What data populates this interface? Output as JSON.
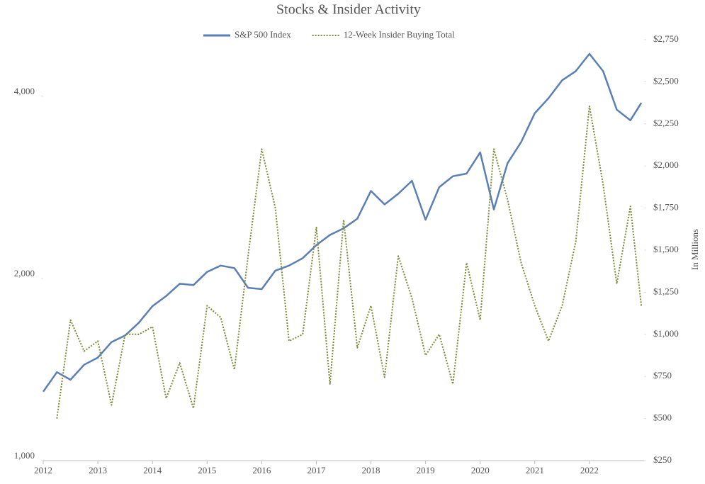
{
  "chart_data": {
    "type": "line",
    "title": "Stocks & Insider Activity",
    "y2_label": "In Millions",
    "legend": "top",
    "x": [
      2012,
      2012.25,
      2012.5,
      2012.75,
      2013,
      2013.25,
      2013.5,
      2013.75,
      2014,
      2014.25,
      2014.5,
      2014.75,
      2015,
      2015.25,
      2015.5,
      2015.75,
      2016,
      2016.25,
      2016.5,
      2016.75,
      2017,
      2017.25,
      2017.5,
      2017.75,
      2018,
      2018.25,
      2018.5,
      2018.75,
      2019,
      2019.25,
      2019.5,
      2019.75,
      2020,
      2020.25,
      2020.5,
      2020.75,
      2021,
      2021.25,
      2021.5,
      2021.75,
      2022,
      2022.25,
      2022.5,
      2022.75,
      2022.95
    ],
    "series": [
      {
        "name": "S&P 500 Index",
        "color": "#5b7fb5",
        "style": "solid",
        "values": [
          1300,
          1400,
          1360,
          1440,
          1480,
          1570,
          1610,
          1690,
          1800,
          1870,
          1960,
          1950,
          2050,
          2100,
          2080,
          1930,
          1920,
          2060,
          2100,
          2160,
          2270,
          2360,
          2420,
          2510,
          2790,
          2650,
          2760,
          2900,
          2500,
          2830,
          2950,
          2980,
          3230,
          2600,
          3100,
          3360,
          3750,
          3970,
          4250,
          4400,
          4700,
          4400,
          3800,
          3650,
          3900
        ]
      },
      {
        "name": "12-Week Insider Buying Total",
        "color": "#7a8c3c",
        "style": "dotted",
        "axis": "y2",
        "values": [
          null,
          500,
          1085,
          900,
          960,
          580,
          1000,
          1000,
          1045,
          620,
          830,
          560,
          1170,
          1100,
          790,
          1465,
          2100,
          1750,
          960,
          1000,
          1635,
          705,
          1680,
          920,
          1170,
          745,
          1465,
          1215,
          875,
          1000,
          705,
          1425,
          1085,
          2100,
          1800,
          1425,
          1170,
          960,
          1170,
          1550,
          2355,
          1890,
          1300,
          1760,
          1170
        ]
      }
    ],
    "xlim": [
      2012,
      2023
    ],
    "xticks": [
      2012,
      2013,
      2014,
      2015,
      2016,
      2017,
      2018,
      2019,
      2020,
      2021,
      2022
    ],
    "ylim": [
      1000,
      4960
    ],
    "log_y": true,
    "yticks": [
      {
        "value": 1000,
        "label": "1,000"
      },
      {
        "value": 2000,
        "label": "2,000"
      },
      {
        "value": 4000,
        "label": "4,000"
      }
    ],
    "y2lim": [
      250,
      2750
    ],
    "y2ticks": [
      {
        "value": 250,
        "label": "$250"
      },
      {
        "value": 500,
        "label": "$500"
      },
      {
        "value": 750,
        "label": "$750"
      },
      {
        "value": 1000,
        "label": "$1,000"
      },
      {
        "value": 1250,
        "label": "$1,250"
      },
      {
        "value": 1500,
        "label": "$1,500"
      },
      {
        "value": 1750,
        "label": "$1,750"
      },
      {
        "value": 2000,
        "label": "$2,000"
      },
      {
        "value": 2250,
        "label": "$2,250"
      },
      {
        "value": 2500,
        "label": "$2,500"
      },
      {
        "value": 2750,
        "label": "$2,750"
      }
    ]
  }
}
